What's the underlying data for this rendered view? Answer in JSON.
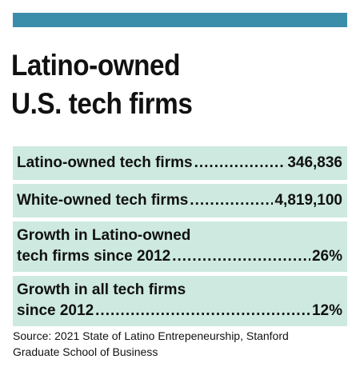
{
  "title": {
    "line1": "Latino-owned",
    "line2": "U.S. tech firms"
  },
  "stats": [
    {
      "label": "Latino-owned tech firms",
      "value": "346,836"
    },
    {
      "label": "White-owned tech firms",
      "value": "4,819,100"
    },
    {
      "label_line1": "Growth in Latino-owned",
      "label_line2": "tech firms since 2012",
      "value": "26%"
    },
    {
      "label_line1": "Growth in all tech firms",
      "label_line2": "since 2012",
      "value": "12%"
    }
  ],
  "source": {
    "line1": "Source: 2021 State of Latino Entrepeneurship, Stanford",
    "line2": "Graduate School of Business"
  },
  "colors": {
    "accent_bar": "#3a8ea9",
    "row_background": "#cde9e0",
    "text": "#111111"
  }
}
